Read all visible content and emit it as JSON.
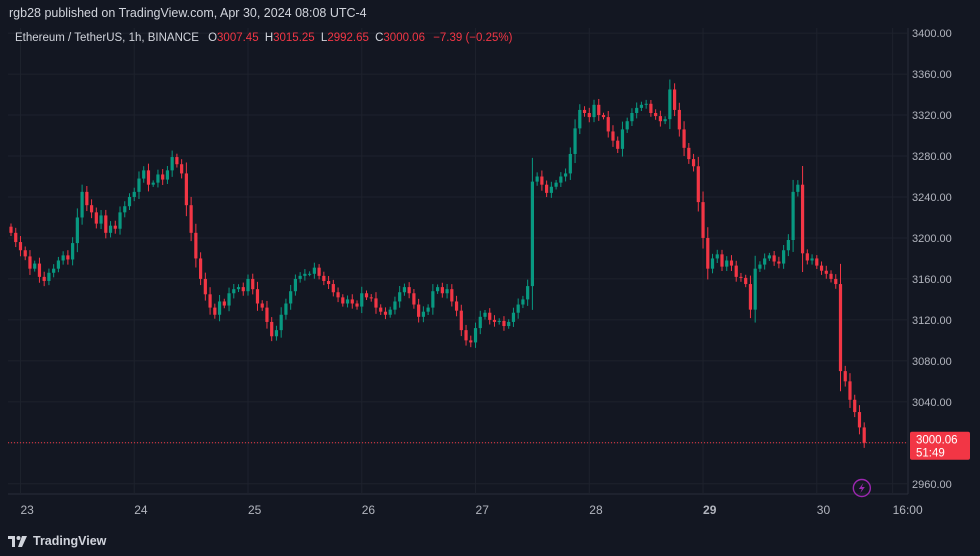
{
  "header": {
    "publisher_line": "rgb28 published on TradingView.com, Apr 30, 2024 08:08 UTC-4"
  },
  "legend": {
    "symbol": "Ethereum / TetherUS, 1h, BINANCE",
    "open_key": "O",
    "open": "3007.45",
    "high_key": "H",
    "high": "3015.25",
    "low_key": "L",
    "low": "2992.65",
    "close_key": "C",
    "close": "3000.06",
    "change": "−7.39 (−0.25%)"
  },
  "price_tag": {
    "price": "3000.06",
    "countdown": "51:49"
  },
  "footer": {
    "brand": "TradingView"
  },
  "colors": {
    "background": "#131722",
    "up": "#089981",
    "down": "#f23645",
    "grid": "#1e222d",
    "text": "#d1d4dc"
  },
  "chart_data": {
    "type": "candlestick",
    "symbol": "Ethereum / TetherUS",
    "interval": "1h",
    "exchange": "BINANCE",
    "y_ticks": [
      2960,
      3000,
      3040,
      3080,
      3120,
      3160,
      3200,
      3240,
      3280,
      3320,
      3360,
      3400
    ],
    "y_tick_labels": [
      "2960.00",
      "3000.06",
      "3040.00",
      "3080.00",
      "3120.00",
      "3160.00",
      "3200.00",
      "3240.00",
      "3280.00",
      "3320.00",
      "3360.00",
      "3400.00"
    ],
    "ylim": [
      2950,
      3405
    ],
    "x_ticks": [
      {
        "label": "23",
        "hour": 2,
        "bold": false
      },
      {
        "label": "24",
        "hour": 26,
        "bold": false
      },
      {
        "label": "25",
        "hour": 50,
        "bold": false
      },
      {
        "label": "26",
        "hour": 74,
        "bold": false
      },
      {
        "label": "27",
        "hour": 98,
        "bold": false
      },
      {
        "label": "28",
        "hour": 122,
        "bold": false
      },
      {
        "label": "29",
        "hour": 146,
        "bold": true
      },
      {
        "label": "30",
        "hour": 170,
        "bold": false
      },
      {
        "label": "16:00",
        "hour": 186,
        "bold": false
      }
    ],
    "last_price": 3000.06,
    "closes": [
      3205,
      3196,
      3188,
      3182,
      3170,
      3175,
      3162,
      3158,
      3166,
      3170,
      3178,
      3183,
      3179,
      3195,
      3220,
      3245,
      3232,
      3225,
      3214,
      3222,
      3205,
      3212,
      3209,
      3225,
      3231,
      3240,
      3245,
      3258,
      3266,
      3252,
      3254,
      3262,
      3257,
      3266,
      3279,
      3272,
      3263,
      3232,
      3205,
      3180,
      3160,
      3145,
      3132,
      3125,
      3138,
      3134,
      3146,
      3150,
      3152,
      3148,
      3160,
      3150,
      3136,
      3132,
      3118,
      3104,
      3110,
      3125,
      3136,
      3148,
      3160,
      3163,
      3165,
      3165,
      3171,
      3163,
      3158,
      3155,
      3147,
      3142,
      3136,
      3140,
      3136,
      3133,
      3146,
      3142,
      3141,
      3132,
      3128,
      3125,
      3130,
      3138,
      3147,
      3152,
      3146,
      3135,
      3123,
      3128,
      3132,
      3148,
      3152,
      3146,
      3150,
      3138,
      3129,
      3110,
      3100,
      3098,
      3112,
      3123,
      3127,
      3120,
      3118,
      3119,
      3114,
      3118,
      3127,
      3135,
      3140,
      3153,
      3255,
      3260,
      3252,
      3244,
      3250,
      3254,
      3260,
      3263,
      3282,
      3307,
      3325,
      3322,
      3318,
      3330,
      3320,
      3318,
      3304,
      3295,
      3287,
      3306,
      3314,
      3322,
      3327,
      3330,
      3331,
      3322,
      3319,
      3314,
      3316,
      3345,
      3325,
      3306,
      3288,
      3277,
      3270,
      3235,
      3200,
      3170,
      3180,
      3184,
      3172,
      3178,
      3173,
      3162,
      3161,
      3155,
      3130,
      3170,
      3174,
      3180,
      3183,
      3177,
      3175,
      3188,
      3198,
      3245,
      3252,
      3185,
      3178,
      3180,
      3173,
      3168,
      3165,
      3160,
      3155,
      3070,
      3060,
      3042,
      3030,
      3015,
      3000
    ]
  }
}
